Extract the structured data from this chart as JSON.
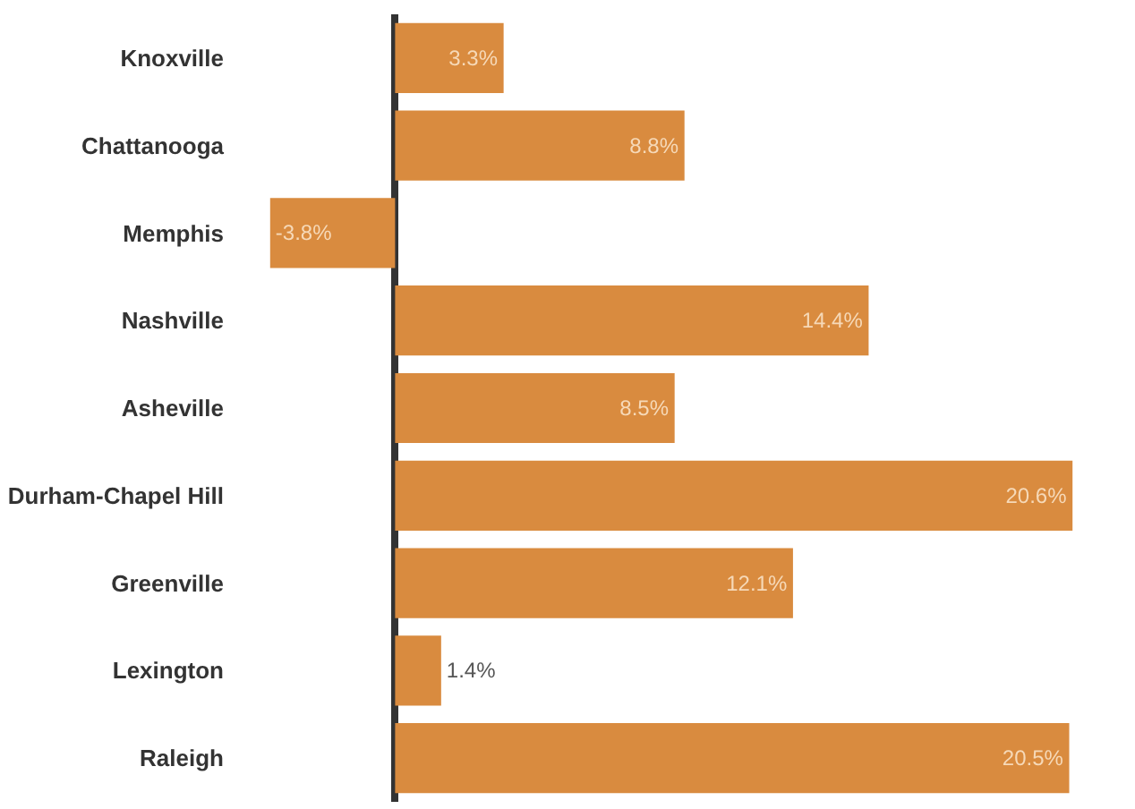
{
  "chart_data": {
    "type": "bar",
    "orientation": "horizontal",
    "categories": [
      "Knoxville",
      "Chattanooga",
      "Memphis",
      "Nashville",
      "Asheville",
      "Durham-Chapel Hill",
      "Greenville",
      "Lexington",
      "Raleigh"
    ],
    "values": [
      3.3,
      8.8,
      -3.8,
      14.4,
      8.5,
      20.6,
      12.1,
      1.4,
      20.5
    ],
    "value_labels": [
      "3.3%",
      "8.8%",
      "-3.8%",
      "14.4%",
      "8.5%",
      "20.6%",
      "12.1%",
      "1.4%",
      "20.5%"
    ],
    "color": "#d98b3f",
    "tick_labels": "y",
    "legend": false
  }
}
